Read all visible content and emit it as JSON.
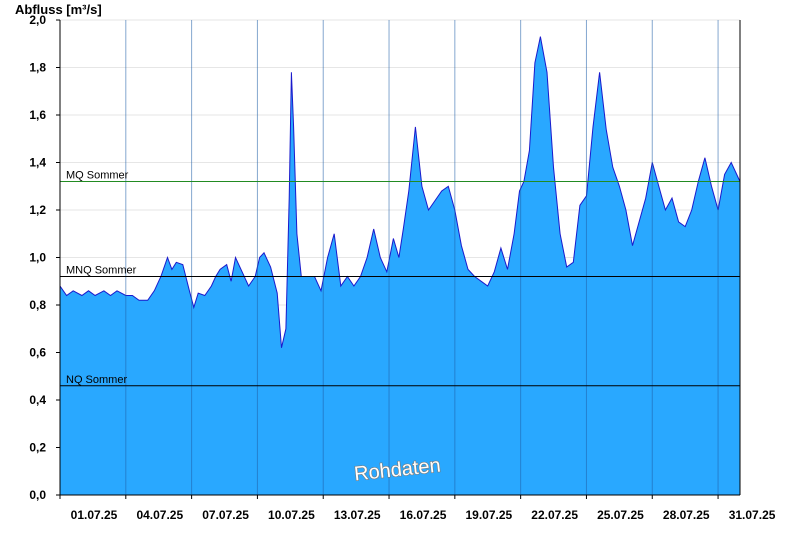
{
  "chart_data": {
    "type": "area",
    "title": "",
    "ylabel": "Abfluss [m³/s]",
    "xlabel": "",
    "ylim": [
      0,
      2.0
    ],
    "y_ticks": [
      0,
      0.2,
      0.4,
      0.6,
      0.8,
      1.0,
      1.2,
      1.4,
      1.6,
      1.8,
      2.0
    ],
    "y_tick_labels": [
      "0,0",
      "0,2",
      "0,4",
      "0,6",
      "0,8",
      "1,0",
      "1,2",
      "1,4",
      "1,6",
      "1,8",
      "2,0"
    ],
    "x_range_days": [
      0,
      31
    ],
    "x_ticks": [
      {
        "day": 0,
        "label": "01.07.25"
      },
      {
        "day": 3,
        "label": "04.07.25"
      },
      {
        "day": 6,
        "label": "07.07.25"
      },
      {
        "day": 9,
        "label": "10.07.25"
      },
      {
        "day": 12,
        "label": "13.07.25"
      },
      {
        "day": 15,
        "label": "16.07.25"
      },
      {
        "day": 18,
        "label": "19.07.25"
      },
      {
        "day": 21,
        "label": "22.07.25"
      },
      {
        "day": 24,
        "label": "25.07.25"
      },
      {
        "day": 27,
        "label": "28.07.25"
      },
      {
        "day": 30,
        "label": "31.07.25"
      }
    ],
    "reference_lines": [
      {
        "name": "MQ Sommer",
        "value": 1.32,
        "color": "#228b22"
      },
      {
        "name": "MNQ Sommer",
        "value": 0.92,
        "color": "#000000"
      },
      {
        "name": "NQ Sommer",
        "value": 0.46,
        "color": "#000000"
      }
    ],
    "series": [
      {
        "fill_color": "#29a8ff",
        "line_color": "#1a1acc",
        "x": [
          0,
          0.3,
          0.6,
          1,
          1.3,
          1.6,
          2,
          2.3,
          2.6,
          3,
          3.3,
          3.6,
          4,
          4.3,
          4.6,
          4.9,
          5.1,
          5.3,
          5.6,
          5.9,
          6.1,
          6.3,
          6.6,
          6.9,
          7.1,
          7.3,
          7.6,
          7.8,
          8,
          8.3,
          8.6,
          8.9,
          9.1,
          9.3,
          9.6,
          9.9,
          10.1,
          10.3,
          10.45,
          10.55,
          10.65,
          10.8,
          11.0,
          11.3,
          11.6,
          11.9,
          12.2,
          12.5,
          12.8,
          13.1,
          13.4,
          13.7,
          14.0,
          14.3,
          14.6,
          14.9,
          15.2,
          15.45,
          15.65,
          15.9,
          16.2,
          16.5,
          16.8,
          17.1,
          17.4,
          17.7,
          18.0,
          18.3,
          18.6,
          18.9,
          19.2,
          19.5,
          19.8,
          20.1,
          20.4,
          20.7,
          20.95,
          21.15,
          21.4,
          21.65,
          21.9,
          22.2,
          22.5,
          22.8,
          23.1,
          23.4,
          23.7,
          24.0,
          24.3,
          24.6,
          24.9,
          25.2,
          25.5,
          25.8,
          26.1,
          26.4,
          26.7,
          27.0,
          27.3,
          27.6,
          27.9,
          28.2,
          28.5,
          28.8,
          29.1,
          29.4,
          29.7,
          30.0,
          30.3,
          30.6,
          31.0
        ],
        "values": [
          0.88,
          0.84,
          0.86,
          0.84,
          0.86,
          0.84,
          0.86,
          0.84,
          0.86,
          0.84,
          0.84,
          0.82,
          0.82,
          0.86,
          0.92,
          1.0,
          0.95,
          0.98,
          0.97,
          0.86,
          0.79,
          0.85,
          0.84,
          0.88,
          0.92,
          0.95,
          0.97,
          0.9,
          1.0,
          0.94,
          0.88,
          0.92,
          1.0,
          1.02,
          0.96,
          0.85,
          0.62,
          0.7,
          1.25,
          1.78,
          1.55,
          1.1,
          0.92,
          0.92,
          0.92,
          0.86,
          1.0,
          1.1,
          0.88,
          0.92,
          0.88,
          0.92,
          1.0,
          1.12,
          1.0,
          0.94,
          1.08,
          1.0,
          1.12,
          1.28,
          1.55,
          1.3,
          1.2,
          1.24,
          1.28,
          1.3,
          1.2,
          1.05,
          0.95,
          0.92,
          0.9,
          0.88,
          0.94,
          1.04,
          0.95,
          1.1,
          1.28,
          1.32,
          1.45,
          1.82,
          1.93,
          1.78,
          1.38,
          1.1,
          0.96,
          0.98,
          1.22,
          1.26,
          1.55,
          1.78,
          1.54,
          1.38,
          1.3,
          1.2,
          1.05,
          1.15,
          1.25,
          1.4,
          1.3,
          1.2,
          1.25,
          1.15,
          1.13,
          1.2,
          1.32,
          1.42,
          1.3,
          1.2,
          1.35,
          1.4,
          1.32
        ]
      }
    ],
    "watermark": "Rohdaten"
  }
}
